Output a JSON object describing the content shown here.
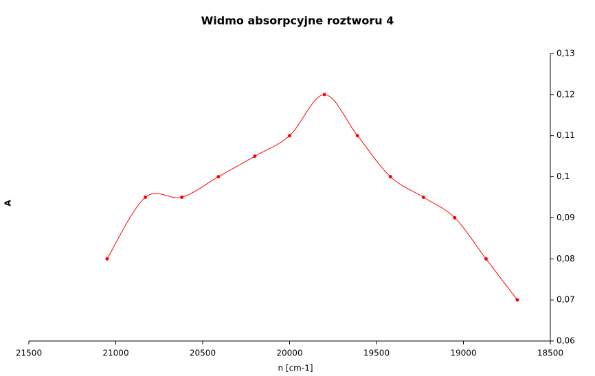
{
  "chart_data": {
    "type": "line",
    "title": "Widmo absorpcyjne roztworu 4",
    "x_label": "n [cm-1]",
    "y_label": "A",
    "x": [
      21050,
      20830,
      20620,
      20410,
      20200,
      20000,
      19800,
      19610,
      19420,
      19230,
      19050,
      18870,
      18690
    ],
    "series": [
      {
        "color": "#ff0000",
        "values": [
          0.08,
          0.095,
          0.095,
          0.1,
          0.105,
          0.11,
          0.12,
          0.11,
          0.1,
          0.095,
          0.09,
          0.08,
          0.07
        ]
      }
    ],
    "xlim": [
      21500,
      18500
    ],
    "xticks": [
      21500,
      21000,
      20500,
      20000,
      19500,
      19000,
      18500
    ],
    "ylim": [
      0.06,
      0.13
    ],
    "yticks": [
      {
        "value": 0.06,
        "label": "0,06"
      },
      {
        "value": 0.07,
        "label": "0,07"
      },
      {
        "value": 0.08,
        "label": "0,08"
      },
      {
        "value": 0.09,
        "label": "0,09"
      },
      {
        "value": 0.1,
        "label": "0,1"
      },
      {
        "value": 0.11,
        "label": "0,11"
      },
      {
        "value": 0.12,
        "label": "0,12"
      },
      {
        "value": 0.13,
        "label": "0,13"
      }
    ],
    "y_axis_side": "right",
    "grid": false,
    "smooth": true
  }
}
